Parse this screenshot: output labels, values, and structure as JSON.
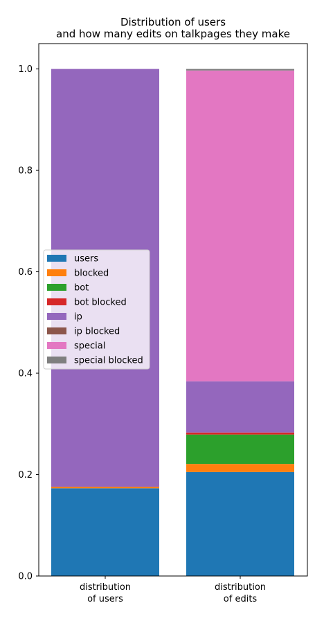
{
  "chart_data": {
    "type": "bar",
    "stacked": true,
    "title_lines": [
      "Distribution of users",
      "and how many edits on talkpages they make"
    ],
    "categories": [
      [
        "distribution",
        "of users"
      ],
      [
        "distribution",
        "of edits"
      ]
    ],
    "ylim": [
      0,
      1.05
    ],
    "yticks": [
      0.0,
      0.2,
      0.4,
      0.6,
      0.8,
      1.0
    ],
    "ytick_labels": [
      "0.0",
      "0.2",
      "0.4",
      "0.6",
      "0.8",
      "1.0"
    ],
    "legend_position": "center-left",
    "series": [
      {
        "name": "users",
        "color": "#1f77b4",
        "values": [
          0.173,
          0.205
        ]
      },
      {
        "name": "blocked",
        "color": "#ff7f0e",
        "values": [
          0.003,
          0.016
        ]
      },
      {
        "name": "bot",
        "color": "#2ca02c",
        "values": [
          0.0,
          0.058
        ]
      },
      {
        "name": "bot blocked",
        "color": "#d62728",
        "values": [
          0.0,
          0.004
        ]
      },
      {
        "name": "ip",
        "color": "#9467bd",
        "values": [
          0.824,
          0.101
        ]
      },
      {
        "name": "ip blocked",
        "color": "#8c564b",
        "values": [
          0.0,
          0.0
        ]
      },
      {
        "name": "special",
        "color": "#e377c2",
        "values": [
          0.0,
          0.613
        ]
      },
      {
        "name": "special blocked",
        "color": "#7f7f7f",
        "values": [
          0.0,
          0.003
        ]
      }
    ]
  }
}
